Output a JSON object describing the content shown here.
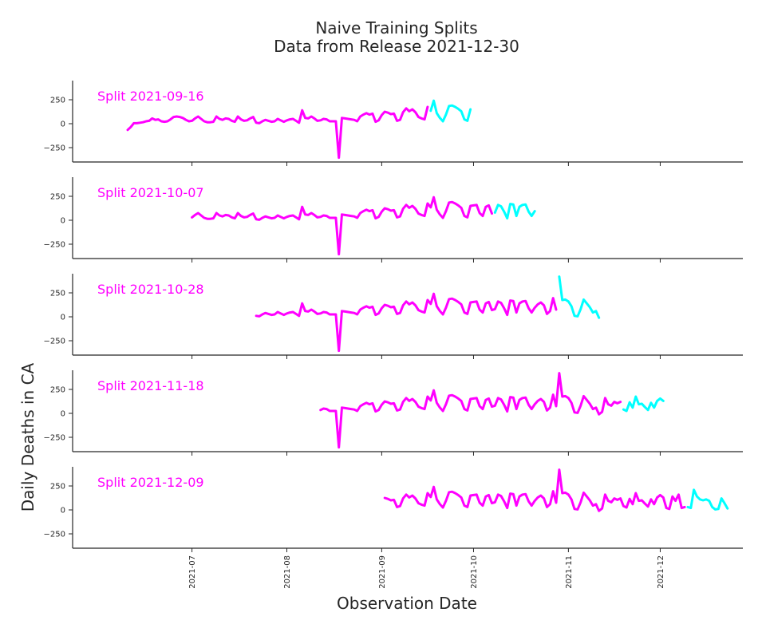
{
  "figure": {
    "title_line1": "Naive Training Splits",
    "title_line2": "Data from Release 2021-12-30",
    "xlabel": "Observation Date",
    "ylabel": "Daily Deaths in CA"
  },
  "colors": {
    "train": "#ff00ff",
    "test": "#00ffff",
    "axis": "#262626"
  },
  "chart_data": {
    "type": "line",
    "x_axis": {
      "range": [
        "2021-05-23",
        "2021-12-28"
      ],
      "ticks": [
        "2021-07-01",
        "2021-08-01",
        "2021-09-01",
        "2021-10-01",
        "2021-11-01",
        "2021-12-01"
      ],
      "tick_labels": [
        "2021-07",
        "2021-08",
        "2021-09",
        "2021-10",
        "2021-11",
        "2021-12"
      ]
    },
    "y_axis": {
      "range": [
        -400,
        450
      ],
      "ticks": [
        250,
        0,
        -250
      ],
      "tick_labels": [
        "250",
        "0",
        "−250"
      ]
    },
    "series_all": [
      [
        "2021-06-10",
        -65
      ],
      [
        "2021-06-11",
        -35
      ],
      [
        "2021-06-12",
        5
      ],
      [
        "2021-06-13",
        5
      ],
      [
        "2021-06-14",
        10
      ],
      [
        "2021-06-15",
        15
      ],
      [
        "2021-06-16",
        25
      ],
      [
        "2021-06-17",
        30
      ],
      [
        "2021-06-18",
        55
      ],
      [
        "2021-06-19",
        40
      ],
      [
        "2021-06-20",
        45
      ],
      [
        "2021-06-21",
        25
      ],
      [
        "2021-06-22",
        20
      ],
      [
        "2021-06-23",
        25
      ],
      [
        "2021-06-24",
        45
      ],
      [
        "2021-06-25",
        70
      ],
      [
        "2021-06-26",
        75
      ],
      [
        "2021-06-27",
        70
      ],
      [
        "2021-06-28",
        60
      ],
      [
        "2021-06-29",
        40
      ],
      [
        "2021-06-30",
        25
      ],
      [
        "2021-07-01",
        30
      ],
      [
        "2021-07-02",
        55
      ],
      [
        "2021-07-03",
        75
      ],
      [
        "2021-07-04",
        50
      ],
      [
        "2021-07-05",
        25
      ],
      [
        "2021-07-06",
        15
      ],
      [
        "2021-07-07",
        15
      ],
      [
        "2021-07-08",
        20
      ],
      [
        "2021-07-09",
        75
      ],
      [
        "2021-07-10",
        50
      ],
      [
        "2021-07-11",
        40
      ],
      [
        "2021-07-12",
        55
      ],
      [
        "2021-07-13",
        50
      ],
      [
        "2021-07-14",
        30
      ],
      [
        "2021-07-15",
        20
      ],
      [
        "2021-07-16",
        75
      ],
      [
        "2021-07-17",
        45
      ],
      [
        "2021-07-18",
        30
      ],
      [
        "2021-07-19",
        35
      ],
      [
        "2021-07-20",
        55
      ],
      [
        "2021-07-21",
        70
      ],
      [
        "2021-07-22",
        10
      ],
      [
        "2021-07-23",
        5
      ],
      [
        "2021-07-24",
        25
      ],
      [
        "2021-07-25",
        40
      ],
      [
        "2021-07-26",
        30
      ],
      [
        "2021-07-27",
        20
      ],
      [
        "2021-07-28",
        25
      ],
      [
        "2021-07-29",
        50
      ],
      [
        "2021-07-30",
        35
      ],
      [
        "2021-07-31",
        20
      ],
      [
        "2021-08-01",
        35
      ],
      [
        "2021-08-02",
        45
      ],
      [
        "2021-08-03",
        50
      ],
      [
        "2021-08-04",
        30
      ],
      [
        "2021-08-05",
        10
      ],
      [
        "2021-08-06",
        140
      ],
      [
        "2021-08-07",
        60
      ],
      [
        "2021-08-08",
        55
      ],
      [
        "2021-08-09",
        75
      ],
      [
        "2021-08-10",
        55
      ],
      [
        "2021-08-11",
        30
      ],
      [
        "2021-08-12",
        35
      ],
      [
        "2021-08-13",
        50
      ],
      [
        "2021-08-14",
        45
      ],
      [
        "2021-08-15",
        25
      ],
      [
        "2021-08-16",
        25
      ],
      [
        "2021-08-17",
        25
      ],
      [
        "2021-08-18",
        -355
      ],
      [
        "2021-08-19",
        60
      ],
      [
        "2021-08-20",
        55
      ],
      [
        "2021-08-21",
        50
      ],
      [
        "2021-08-22",
        45
      ],
      [
        "2021-08-23",
        40
      ],
      [
        "2021-08-24",
        25
      ],
      [
        "2021-08-25",
        75
      ],
      [
        "2021-08-26",
        95
      ],
      [
        "2021-08-27",
        110
      ],
      [
        "2021-08-28",
        95
      ],
      [
        "2021-08-29",
        105
      ],
      [
        "2021-08-30",
        20
      ],
      [
        "2021-08-31",
        35
      ],
      [
        "2021-09-01",
        90
      ],
      [
        "2021-09-02",
        125
      ],
      [
        "2021-09-03",
        115
      ],
      [
        "2021-09-04",
        100
      ],
      [
        "2021-09-05",
        105
      ],
      [
        "2021-09-06",
        30
      ],
      [
        "2021-09-07",
        40
      ],
      [
        "2021-09-08",
        120
      ],
      [
        "2021-09-09",
        160
      ],
      [
        "2021-09-10",
        130
      ],
      [
        "2021-09-11",
        150
      ],
      [
        "2021-09-12",
        120
      ],
      [
        "2021-09-13",
        70
      ],
      [
        "2021-09-14",
        55
      ],
      [
        "2021-09-15",
        45
      ],
      [
        "2021-09-16",
        175
      ],
      [
        "2021-09-17",
        135
      ],
      [
        "2021-09-18",
        240
      ],
      [
        "2021-09-19",
        110
      ],
      [
        "2021-09-20",
        60
      ],
      [
        "2021-09-21",
        25
      ],
      [
        "2021-09-22",
        95
      ],
      [
        "2021-09-23",
        185
      ],
      [
        "2021-09-24",
        190
      ],
      [
        "2021-09-25",
        175
      ],
      [
        "2021-09-26",
        155
      ],
      [
        "2021-09-27",
        130
      ],
      [
        "2021-09-28",
        45
      ],
      [
        "2021-09-29",
        30
      ],
      [
        "2021-09-30",
        150
      ],
      [
        "2021-10-01",
        155
      ],
      [
        "2021-10-02",
        160
      ],
      [
        "2021-10-03",
        75
      ],
      [
        "2021-10-04",
        45
      ],
      [
        "2021-10-05",
        140
      ],
      [
        "2021-10-06",
        155
      ],
      [
        "2021-10-07",
        70
      ],
      [
        "2021-10-08",
        80
      ],
      [
        "2021-10-09",
        160
      ],
      [
        "2021-10-10",
        145
      ],
      [
        "2021-10-11",
        90
      ],
      [
        "2021-10-12",
        20
      ],
      [
        "2021-10-13",
        170
      ],
      [
        "2021-10-14",
        165
      ],
      [
        "2021-10-15",
        45
      ],
      [
        "2021-10-16",
        140
      ],
      [
        "2021-10-17",
        160
      ],
      [
        "2021-10-18",
        165
      ],
      [
        "2021-10-19",
        90
      ],
      [
        "2021-10-20",
        45
      ],
      [
        "2021-10-21",
        95
      ],
      [
        "2021-10-22",
        130
      ],
      [
        "2021-10-23",
        150
      ],
      [
        "2021-10-24",
        120
      ],
      [
        "2021-10-25",
        30
      ],
      [
        "2021-10-26",
        60
      ],
      [
        "2021-10-27",
        195
      ],
      [
        "2021-10-28",
        75
      ],
      [
        "2021-10-29",
        420
      ],
      [
        "2021-10-30",
        175
      ],
      [
        "2021-10-31",
        180
      ],
      [
        "2021-11-01",
        160
      ],
      [
        "2021-11-02",
        110
      ],
      [
        "2021-11-03",
        10
      ],
      [
        "2021-11-04",
        5
      ],
      [
        "2021-11-05",
        80
      ],
      [
        "2021-11-06",
        180
      ],
      [
        "2021-11-07",
        140
      ],
      [
        "2021-11-08",
        100
      ],
      [
        "2021-11-09",
        45
      ],
      [
        "2021-11-10",
        60
      ],
      [
        "2021-11-11",
        -10
      ],
      [
        "2021-11-12",
        15
      ],
      [
        "2021-11-13",
        160
      ],
      [
        "2021-11-14",
        95
      ],
      [
        "2021-11-15",
        80
      ],
      [
        "2021-11-16",
        120
      ],
      [
        "2021-11-17",
        105
      ],
      [
        "2021-11-18",
        120
      ],
      [
        "2021-11-19",
        40
      ],
      [
        "2021-11-20",
        25
      ],
      [
        "2021-11-21",
        115
      ],
      [
        "2021-11-22",
        60
      ],
      [
        "2021-11-23",
        175
      ],
      [
        "2021-11-24",
        95
      ],
      [
        "2021-11-25",
        100
      ],
      [
        "2021-11-26",
        65
      ],
      [
        "2021-11-27",
        35
      ],
      [
        "2021-11-28",
        110
      ],
      [
        "2021-11-29",
        60
      ],
      [
        "2021-11-30",
        130
      ],
      [
        "2021-12-01",
        155
      ],
      [
        "2021-12-02",
        130
      ],
      [
        "2021-12-03",
        20
      ],
      [
        "2021-12-04",
        10
      ],
      [
        "2021-12-05",
        140
      ],
      [
        "2021-12-06",
        95
      ],
      [
        "2021-12-07",
        160
      ],
      [
        "2021-12-08",
        20
      ],
      [
        "2021-12-09",
        30
      ],
      [
        "2021-12-10",
        30
      ],
      [
        "2021-12-11",
        20
      ],
      [
        "2021-12-12",
        210
      ],
      [
        "2021-12-13",
        140
      ],
      [
        "2021-12-14",
        110
      ],
      [
        "2021-12-15",
        100
      ],
      [
        "2021-12-16",
        110
      ],
      [
        "2021-12-17",
        95
      ],
      [
        "2021-12-18",
        30
      ],
      [
        "2021-12-19",
        5
      ],
      [
        "2021-12-20",
        10
      ],
      [
        "2021-12-21",
        120
      ],
      [
        "2021-12-22",
        70
      ],
      [
        "2021-12-23",
        15
      ],
      [
        "2021-12-24",
        120
      ],
      [
        "2021-12-25",
        130
      ]
    ],
    "panels": [
      {
        "label": "Split 2021-09-16",
        "train_start": "2021-06-10",
        "test_start": "2021-09-17",
        "test_end": "2021-09-30"
      },
      {
        "label": "Split 2021-10-07",
        "train_start": "2021-07-01",
        "test_start": "2021-10-08",
        "test_end": "2021-10-21"
      },
      {
        "label": "Split 2021-10-28",
        "train_start": "2021-07-22",
        "test_start": "2021-10-29",
        "test_end": "2021-11-11"
      },
      {
        "label": "Split 2021-11-18",
        "train_start": "2021-08-12",
        "test_start": "2021-11-19",
        "test_end": "2021-12-02"
      },
      {
        "label": "Split 2021-12-09",
        "train_start": "2021-09-02",
        "test_start": "2021-12-10",
        "test_end": "2021-12-23"
      }
    ]
  }
}
